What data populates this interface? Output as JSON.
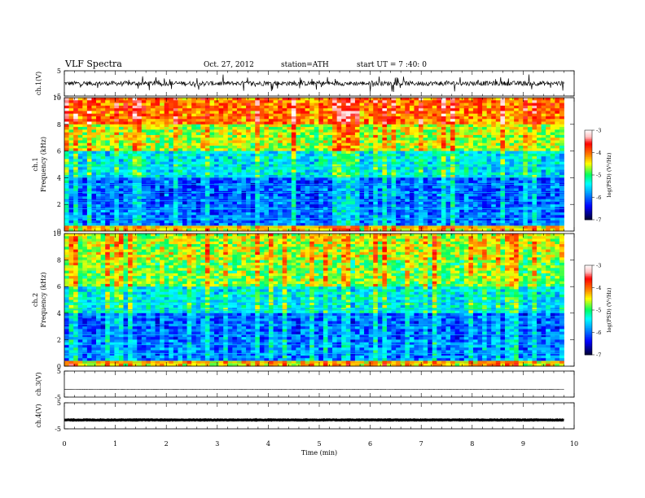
{
  "header": {
    "title": "VLF  Spectra",
    "date": "Oct. 27, 2012",
    "station": "station=ATH",
    "start": "start  UT  =   7  :40: 0"
  },
  "chart_data": [
    {
      "type": "line",
      "panel": "ch1-waveform",
      "ylabel": "ch.1(V)",
      "ylim": [
        -5,
        5
      ],
      "y_ticks": [
        "5",
        "-5"
      ],
      "x_range_min": [
        0,
        9.8
      ],
      "baseline_v": 0.0
    },
    {
      "type": "heatmap",
      "panel": "ch1-spectrogram",
      "ylabel": [
        "ch.1",
        "Frequency  (kHz)"
      ],
      "ylim": [
        0,
        10
      ],
      "y_ticks": [
        "0",
        "2",
        "4",
        "6",
        "8",
        "10"
      ],
      "x_range_min": [
        0,
        9.8
      ],
      "colorbar": {
        "label": "log(PSD) (V²/Hz)",
        "range": [
          -7,
          -3
        ],
        "ticks": [
          "-3",
          "-4",
          "-5",
          "-6",
          "-7"
        ],
        "colors": [
          "#000033",
          "#0000ff",
          "#00a0ff",
          "#00ffff",
          "#00ff60",
          "#ffff00",
          "#ff8000",
          "#ff0000",
          "#ffc0c0",
          "#ffffff"
        ]
      }
    },
    {
      "type": "heatmap",
      "panel": "ch2-spectrogram",
      "ylabel": [
        "ch.2",
        "Frequency  (kHz)"
      ],
      "ylim": [
        0,
        10
      ],
      "y_ticks": [
        "0",
        "2",
        "4",
        "6",
        "8",
        "10"
      ],
      "x_range_min": [
        0,
        9.8
      ],
      "colorbar": {
        "label": "log(PSD) (V²/Hz)",
        "range": [
          -7,
          -3
        ],
        "ticks": [
          "-3",
          "-4",
          "-5",
          "-6",
          "-7"
        ]
      }
    },
    {
      "type": "line",
      "panel": "ch3-waveform",
      "ylabel": "ch.3(V)",
      "ylim": [
        -5,
        5
      ],
      "y_ticks": [
        "5",
        "-5"
      ],
      "x_range_min": [
        0,
        9.8
      ],
      "baseline_v": -2.0
    },
    {
      "type": "line",
      "panel": "ch4-waveform",
      "ylabel": "ch.4(V)",
      "ylim": [
        -5,
        5
      ],
      "y_ticks": [
        "5",
        "-5"
      ],
      "x_range_min": [
        0,
        9.8
      ],
      "baseline_v": -1.6
    }
  ],
  "x_axis": {
    "label": "Time  (min)",
    "min": 0,
    "max": 10,
    "ticks": [
      "0",
      "1",
      "2",
      "3",
      "4",
      "5",
      "6",
      "7",
      "8",
      "9",
      "10"
    ]
  }
}
